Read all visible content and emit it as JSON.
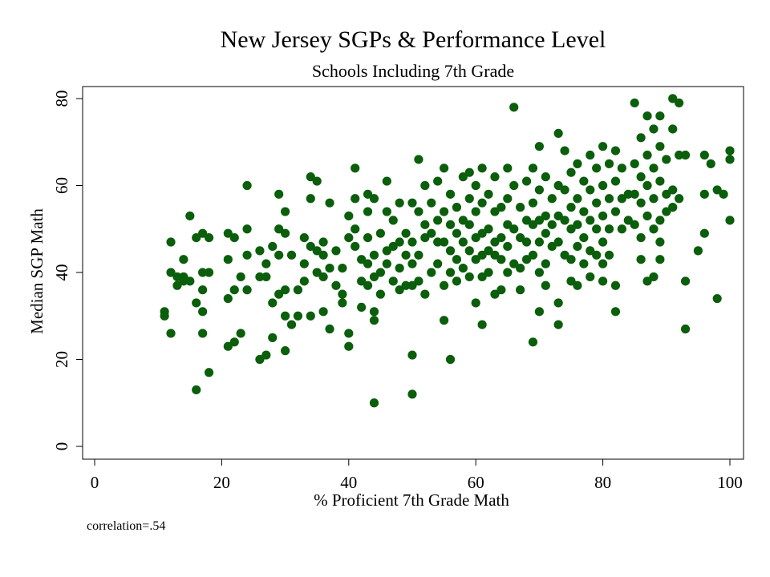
{
  "chart_data": {
    "type": "scatter",
    "title": "New Jersey SGPs & Performance Level",
    "subtitle": "Schools Including 7th Grade",
    "xlabel": "% Proficient 7th Grade Math",
    "ylabel": "Median SGP Math",
    "xlim": [
      0,
      100
    ],
    "ylim": [
      0,
      80
    ],
    "xticks": [
      "0",
      "20",
      "40",
      "60",
      "80",
      "100"
    ],
    "yticks": [
      "0",
      "20",
      "40",
      "60",
      "80"
    ],
    "grid": false,
    "marker_color": "#0b5e0b",
    "annotation": "correlation=.54",
    "points": [
      [
        11,
        31
      ],
      [
        11,
        30
      ],
      [
        12,
        47
      ],
      [
        12,
        40
      ],
      [
        12,
        26
      ],
      [
        13,
        39
      ],
      [
        13,
        37
      ],
      [
        14,
        43
      ],
      [
        14,
        38
      ],
      [
        14,
        39
      ],
      [
        15,
        53
      ],
      [
        15,
        38
      ],
      [
        16,
        48
      ],
      [
        16,
        33
      ],
      [
        16,
        13
      ],
      [
        17,
        49
      ],
      [
        17,
        40
      ],
      [
        17,
        36
      ],
      [
        17,
        31
      ],
      [
        17,
        26
      ],
      [
        18,
        48
      ],
      [
        18,
        40
      ],
      [
        18,
        17
      ],
      [
        21,
        49
      ],
      [
        21,
        43
      ],
      [
        21,
        34
      ],
      [
        21,
        23
      ],
      [
        22,
        48
      ],
      [
        22,
        36
      ],
      [
        22,
        24
      ],
      [
        23,
        39
      ],
      [
        23,
        26
      ],
      [
        24,
        60
      ],
      [
        24,
        50
      ],
      [
        24,
        44
      ],
      [
        24,
        36
      ],
      [
        26,
        45
      ],
      [
        26,
        39
      ],
      [
        26,
        20
      ],
      [
        27,
        42
      ],
      [
        27,
        39
      ],
      [
        27,
        21
      ],
      [
        28,
        46
      ],
      [
        28,
        33
      ],
      [
        28,
        25
      ],
      [
        29,
        58
      ],
      [
        29,
        50
      ],
      [
        29,
        44
      ],
      [
        29,
        35
      ],
      [
        30,
        54
      ],
      [
        30,
        49
      ],
      [
        30,
        36
      ],
      [
        30,
        30
      ],
      [
        30,
        22
      ],
      [
        31,
        44
      ],
      [
        31,
        28
      ],
      [
        32,
        36
      ],
      [
        32,
        30
      ],
      [
        33,
        48
      ],
      [
        33,
        42
      ],
      [
        33,
        38
      ],
      [
        34,
        62
      ],
      [
        34,
        57
      ],
      [
        34,
        46
      ],
      [
        34,
        30
      ],
      [
        35,
        61
      ],
      [
        35,
        45
      ],
      [
        35,
        40
      ],
      [
        36,
        47
      ],
      [
        36,
        44
      ],
      [
        36,
        39
      ],
      [
        36,
        31
      ],
      [
        37,
        56
      ],
      [
        37,
        41
      ],
      [
        37,
        27
      ],
      [
        38,
        45
      ],
      [
        38,
        37
      ],
      [
        39,
        41
      ],
      [
        39,
        35
      ],
      [
        39,
        33
      ],
      [
        40,
        53
      ],
      [
        40,
        48
      ],
      [
        40,
        26
      ],
      [
        40,
        23
      ],
      [
        41,
        64
      ],
      [
        41,
        57
      ],
      [
        41,
        50
      ],
      [
        41,
        46
      ],
      [
        42,
        43
      ],
      [
        42,
        38
      ],
      [
        42,
        32
      ],
      [
        43,
        58
      ],
      [
        43,
        54
      ],
      [
        43,
        48
      ],
      [
        43,
        42
      ],
      [
        43,
        37
      ],
      [
        44,
        57
      ],
      [
        44,
        44
      ],
      [
        44,
        39
      ],
      [
        44,
        31
      ],
      [
        44,
        29
      ],
      [
        44,
        10
      ],
      [
        45,
        49
      ],
      [
        45,
        40
      ],
      [
        45,
        35
      ],
      [
        46,
        61
      ],
      [
        46,
        54
      ],
      [
        46,
        45
      ],
      [
        46,
        42
      ],
      [
        47,
        52
      ],
      [
        47,
        46
      ],
      [
        47,
        38
      ],
      [
        48,
        56
      ],
      [
        48,
        47
      ],
      [
        48,
        41
      ],
      [
        48,
        36
      ],
      [
        49,
        49
      ],
      [
        49,
        44
      ],
      [
        49,
        37
      ],
      [
        50,
        56
      ],
      [
        50,
        47
      ],
      [
        50,
        42
      ],
      [
        50,
        37
      ],
      [
        50,
        21
      ],
      [
        50,
        12
      ],
      [
        51,
        66
      ],
      [
        51,
        54
      ],
      [
        51,
        44
      ],
      [
        51,
        38
      ],
      [
        52,
        60
      ],
      [
        52,
        51
      ],
      [
        52,
        48
      ],
      [
        52,
        35
      ],
      [
        53,
        56
      ],
      [
        53,
        49
      ],
      [
        53,
        40
      ],
      [
        54,
        61
      ],
      [
        54,
        52
      ],
      [
        54,
        47
      ],
      [
        54,
        42
      ],
      [
        55,
        64
      ],
      [
        55,
        54
      ],
      [
        55,
        47
      ],
      [
        55,
        37
      ],
      [
        55,
        29
      ],
      [
        56,
        58
      ],
      [
        56,
        51
      ],
      [
        56,
        45
      ],
      [
        56,
        40
      ],
      [
        56,
        20
      ],
      [
        57,
        55
      ],
      [
        57,
        49
      ],
      [
        57,
        43
      ],
      [
        57,
        38
      ],
      [
        58,
        62
      ],
      [
        58,
        52
      ],
      [
        58,
        47
      ],
      [
        58,
        41
      ],
      [
        59,
        63
      ],
      [
        59,
        57
      ],
      [
        59,
        51
      ],
      [
        59,
        45
      ],
      [
        59,
        39
      ],
      [
        60,
        60
      ],
      [
        60,
        54
      ],
      [
        60,
        48
      ],
      [
        60,
        43
      ],
      [
        60,
        33
      ],
      [
        61,
        64
      ],
      [
        61,
        56
      ],
      [
        61,
        49
      ],
      [
        61,
        44
      ],
      [
        61,
        39
      ],
      [
        61,
        28
      ],
      [
        62,
        58
      ],
      [
        62,
        50
      ],
      [
        62,
        45
      ],
      [
        62,
        40
      ],
      [
        63,
        62
      ],
      [
        63,
        54
      ],
      [
        63,
        47
      ],
      [
        63,
        44
      ],
      [
        63,
        35
      ],
      [
        64,
        55
      ],
      [
        64,
        48
      ],
      [
        64,
        43
      ],
      [
        64,
        36
      ],
      [
        65,
        64
      ],
      [
        65,
        57
      ],
      [
        65,
        51
      ],
      [
        65,
        46
      ],
      [
        65,
        40
      ],
      [
        66,
        78
      ],
      [
        66,
        60
      ],
      [
        66,
        50
      ],
      [
        66,
        42
      ],
      [
        67,
        55
      ],
      [
        67,
        48
      ],
      [
        67,
        41
      ],
      [
        67,
        36
      ],
      [
        68,
        61
      ],
      [
        68,
        52
      ],
      [
        68,
        47
      ],
      [
        68,
        43
      ],
      [
        69,
        64
      ],
      [
        69,
        56
      ],
      [
        69,
        51
      ],
      [
        69,
        44
      ],
      [
        69,
        24
      ],
      [
        70,
        69
      ],
      [
        70,
        59
      ],
      [
        70,
        52
      ],
      [
        70,
        47
      ],
      [
        70,
        40
      ],
      [
        70,
        31
      ],
      [
        71,
        62
      ],
      [
        71,
        53
      ],
      [
        71,
        49
      ],
      [
        71,
        42
      ],
      [
        71,
        37
      ],
      [
        72,
        57
      ],
      [
        72,
        51
      ],
      [
        72,
        46
      ],
      [
        73,
        72
      ],
      [
        73,
        60
      ],
      [
        73,
        53
      ],
      [
        73,
        47
      ],
      [
        73,
        33
      ],
      [
        73,
        28
      ],
      [
        74,
        68
      ],
      [
        74,
        59
      ],
      [
        74,
        52
      ],
      [
        74,
        44
      ],
      [
        75,
        63
      ],
      [
        75,
        55
      ],
      [
        75,
        50
      ],
      [
        75,
        43
      ],
      [
        75,
        38
      ],
      [
        76,
        65
      ],
      [
        76,
        57
      ],
      [
        76,
        51
      ],
      [
        76,
        46
      ],
      [
        76,
        37
      ],
      [
        77,
        61
      ],
      [
        77,
        54
      ],
      [
        77,
        48
      ],
      [
        77,
        42
      ],
      [
        78,
        67
      ],
      [
        78,
        59
      ],
      [
        78,
        52
      ],
      [
        78,
        45
      ],
      [
        78,
        39
      ],
      [
        79,
        64
      ],
      [
        79,
        56
      ],
      [
        79,
        50
      ],
      [
        79,
        44
      ],
      [
        80,
        69
      ],
      [
        80,
        60
      ],
      [
        80,
        53
      ],
      [
        80,
        47
      ],
      [
        80,
        42
      ],
      [
        80,
        38
      ],
      [
        81,
        65
      ],
      [
        81,
        57
      ],
      [
        81,
        50
      ],
      [
        81,
        44
      ],
      [
        82,
        68
      ],
      [
        82,
        61
      ],
      [
        82,
        54
      ],
      [
        82,
        37
      ],
      [
        82,
        31
      ],
      [
        83,
        64
      ],
      [
        83,
        57
      ],
      [
        83,
        50
      ],
      [
        84,
        58
      ],
      [
        84,
        52
      ],
      [
        85,
        79
      ],
      [
        85,
        65
      ],
      [
        85,
        58
      ],
      [
        85,
        51
      ],
      [
        86,
        71
      ],
      [
        86,
        62
      ],
      [
        86,
        56
      ],
      [
        86,
        48
      ],
      [
        86,
        43
      ],
      [
        87,
        76
      ],
      [
        87,
        67
      ],
      [
        87,
        60
      ],
      [
        87,
        53
      ],
      [
        87,
        38
      ],
      [
        88,
        73
      ],
      [
        88,
        64
      ],
      [
        88,
        57
      ],
      [
        88,
        50
      ],
      [
        88,
        39
      ],
      [
        89,
        76
      ],
      [
        89,
        69
      ],
      [
        89,
        61
      ],
      [
        89,
        52
      ],
      [
        89,
        47
      ],
      [
        89,
        43
      ],
      [
        90,
        66
      ],
      [
        90,
        58
      ],
      [
        90,
        54
      ],
      [
        91,
        80
      ],
      [
        91,
        73
      ],
      [
        91,
        59
      ],
      [
        91,
        55
      ],
      [
        92,
        79
      ],
      [
        92,
        67
      ],
      [
        92,
        57
      ],
      [
        93,
        67
      ],
      [
        93,
        38
      ],
      [
        93,
        27
      ],
      [
        95,
        45
      ],
      [
        96,
        67
      ],
      [
        96,
        58
      ],
      [
        96,
        49
      ],
      [
        97,
        65
      ],
      [
        98,
        59
      ],
      [
        98,
        34
      ],
      [
        99,
        58
      ],
      [
        100,
        68
      ],
      [
        100,
        66
      ],
      [
        100,
        52
      ]
    ]
  }
}
